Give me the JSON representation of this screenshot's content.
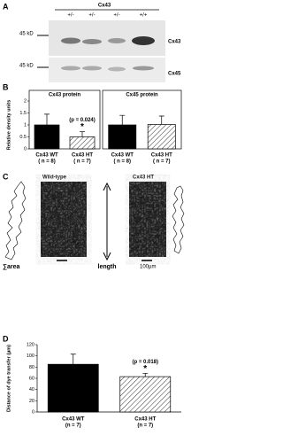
{
  "panel_a": {
    "letter": "A",
    "gene": "Cx43",
    "lanes": [
      "+/-",
      "+/-",
      "+/-",
      "+/+"
    ],
    "marker_top": "45 kD",
    "marker_bottom": "45 kD",
    "blot_top": "Cx43",
    "blot_bottom": "Cx45"
  },
  "panel_b": {
    "letter": "B"
  },
  "panel_c": {
    "letter": "C",
    "left_title": "Wild-type",
    "right_title": "Cx43 HT",
    "area_label": "∑area",
    "length_label": "length",
    "scale_label": "100µm"
  },
  "panel_d": {
    "letter": "D"
  },
  "chart_data": [
    {
      "type": "bar",
      "title": "Cx43 protein",
      "y_label": "Relative density units",
      "categories": [
        "Cx43 WT",
        "Cx43 HT"
      ],
      "category_notes": [
        "( n = 8)",
        "( n = 7)"
      ],
      "values": [
        1.0,
        0.5
      ],
      "errors": [
        0.45,
        0.22
      ],
      "bar_styles": [
        "solid",
        "hatched"
      ],
      "color": "#000000",
      "annotation": "(p = 0.024)",
      "marker": "*",
      "ylim": [
        0,
        2
      ],
      "yticks": [
        0,
        0.5,
        1,
        1.5,
        2
      ],
      "frame": true
    },
    {
      "type": "bar",
      "title": "Cx45 protein",
      "categories": [
        "Cx43 WT",
        "Cx43 HT"
      ],
      "category_notes": [
        "( n = 8)",
        "( n = 7)"
      ],
      "values": [
        1.0,
        1.02
      ],
      "errors": [
        0.4,
        0.35
      ],
      "bar_styles": [
        "solid",
        "hatched"
      ],
      "color": "#000000",
      "ylim": [
        0,
        2
      ],
      "frame": true
    },
    {
      "type": "bar",
      "y_label": "Distance of dye transfer (µm)",
      "categories": [
        "Cx43 WT",
        "Cx43 HT"
      ],
      "category_notes": [
        "(n = 7)",
        "(n = 7)"
      ],
      "values": [
        85,
        63
      ],
      "errors": [
        18,
        6
      ],
      "bar_styles": [
        "solid",
        "hatched"
      ],
      "color": "#000000",
      "annotation": "(p = 0.018)",
      "marker": "*",
      "ylim": [
        0,
        120
      ],
      "yticks": [
        0,
        20,
        40,
        60,
        80,
        100,
        120
      ],
      "frame": false
    }
  ]
}
